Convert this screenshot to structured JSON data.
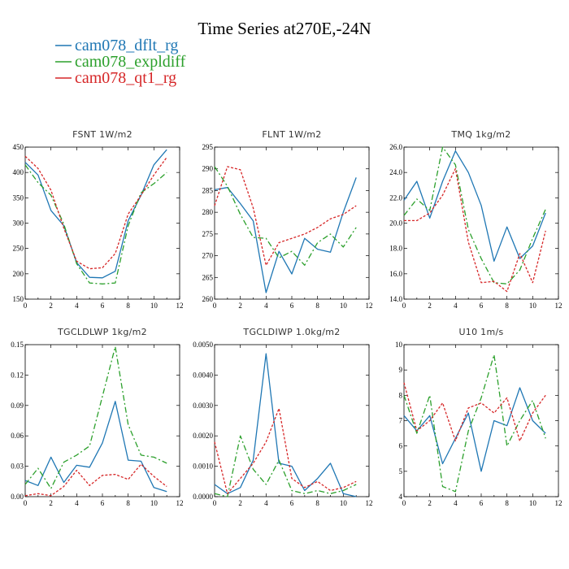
{
  "figure": {
    "title": "Time Series at270E,-24N"
  },
  "legend": [
    {
      "label": "cam078_dflt_rg",
      "color": "#1f77b4",
      "dash": "solid"
    },
    {
      "label": "cam078_expldiff",
      "color": "#2ca02c",
      "dash": "dashdot"
    },
    {
      "label": "cam078_qt1_rg",
      "color": "#d62728",
      "dash": "dotted"
    }
  ],
  "chart_data": [
    {
      "type": "line",
      "title": "FSNT   1W/m2",
      "x": [
        0,
        1,
        2,
        3,
        4,
        5,
        6,
        7,
        8,
        9,
        10,
        11
      ],
      "xlim": [
        0,
        12
      ],
      "xticks": [
        0,
        2,
        4,
        6,
        8,
        10,
        12
      ],
      "ylim": [
        150,
        450
      ],
      "yticks": [
        150,
        200,
        250,
        300,
        350,
        400,
        450
      ],
      "ytick_labels": [
        "150",
        "200",
        "250",
        "300",
        "350",
        "400",
        "450"
      ],
      "series": [
        {
          "name": "cam078_dflt_rg",
          "values": [
            420,
            395,
            325,
            295,
            222,
            193,
            192,
            205,
            305,
            355,
            415,
            445
          ]
        },
        {
          "name": "cam078_expldiff",
          "values": [
            415,
            380,
            355,
            298,
            220,
            182,
            180,
            182,
            295,
            360,
            378,
            400
          ]
        },
        {
          "name": "cam078_qt1_rg",
          "values": [
            432,
            408,
            365,
            290,
            225,
            210,
            212,
            240,
            318,
            355,
            395,
            430
          ]
        }
      ]
    },
    {
      "type": "line",
      "title": "FLNT   1W/m2",
      "x": [
        0,
        1,
        2,
        3,
        4,
        5,
        6,
        7,
        8,
        9,
        10,
        11
      ],
      "xlim": [
        0,
        12
      ],
      "xticks": [
        0,
        2,
        4,
        6,
        8,
        10,
        12
      ],
      "ylim": [
        260,
        295
      ],
      "yticks": [
        260,
        265,
        270,
        275,
        280,
        285,
        290,
        295
      ],
      "ytick_labels": [
        "260",
        "265",
        "270",
        "275",
        "280",
        "285",
        "290",
        "295"
      ],
      "series": [
        {
          "name": "cam078_dflt_rg",
          "values": [
            285.2,
            285.7,
            282,
            278,
            261.5,
            271,
            265.8,
            274,
            271.5,
            270.8,
            280,
            288
          ]
        },
        {
          "name": "cam078_expldiff",
          "values": [
            290.5,
            286,
            279.5,
            274.2,
            274,
            269.5,
            271,
            267.8,
            273,
            275,
            272,
            276.5
          ]
        },
        {
          "name": "cam078_qt1_rg",
          "values": [
            281.5,
            290.5,
            289.8,
            281,
            267.8,
            273,
            274,
            275,
            276.5,
            278.5,
            279.5,
            281.5
          ]
        }
      ]
    },
    {
      "type": "line",
      "title": "TMQ   1kg/m2",
      "x": [
        0,
        1,
        2,
        3,
        4,
        5,
        6,
        7,
        8,
        9,
        10,
        11
      ],
      "xlim": [
        0,
        12
      ],
      "xticks": [
        0,
        2,
        4,
        6,
        8,
        10,
        12
      ],
      "ylim": [
        14,
        26
      ],
      "yticks": [
        14,
        16,
        18,
        20,
        22,
        24,
        26
      ],
      "ytick_labels": [
        "14.0",
        "16.0",
        "18.0",
        "20.0",
        "22.0",
        "24.0",
        "26.0"
      ],
      "series": [
        {
          "name": "cam078_dflt_rg",
          "values": [
            21.8,
            23.3,
            20.4,
            23.3,
            25.7,
            24,
            21.4,
            17,
            19.7,
            17.2,
            18.2,
            20.8
          ]
        },
        {
          "name": "cam078_expldiff",
          "values": [
            20.6,
            21.9,
            21,
            26,
            24.6,
            19.5,
            17.2,
            15.3,
            15.2,
            16.3,
            18.8,
            21.1
          ]
        },
        {
          "name": "cam078_qt1_rg",
          "values": [
            20.2,
            20.2,
            20.8,
            22.2,
            24.3,
            18.5,
            15.3,
            15.4,
            14.6,
            17.6,
            15.3,
            19.4
          ]
        }
      ]
    },
    {
      "type": "line",
      "title": "TGCLDLWP   1kg/m2",
      "x": [
        0,
        1,
        2,
        3,
        4,
        5,
        6,
        7,
        8,
        9,
        10,
        11
      ],
      "xlim": [
        0,
        12
      ],
      "xticks": [
        0,
        2,
        4,
        6,
        8,
        10,
        12
      ],
      "ylim": [
        0,
        0.15
      ],
      "yticks": [
        0,
        0.03,
        0.06,
        0.09,
        0.12,
        0.15
      ],
      "ytick_labels": [
        "0.00",
        "0.03",
        "0.06",
        "0.09",
        "0.12",
        "0.15"
      ],
      "series": [
        {
          "name": "cam078_dflt_rg",
          "values": [
            0.016,
            0.011,
            0.039,
            0.014,
            0.031,
            0.029,
            0.053,
            0.094,
            0.036,
            0.035,
            0.009,
            0.005
          ]
        },
        {
          "name": "cam078_expldiff",
          "values": [
            0.012,
            0.028,
            0.008,
            0.034,
            0.041,
            0.05,
            0.099,
            0.148,
            0.071,
            0.041,
            0.039,
            0.033
          ]
        },
        {
          "name": "cam078_qt1_rg",
          "values": [
            0.001,
            0.003,
            0.001,
            0.01,
            0.026,
            0.011,
            0.021,
            0.022,
            0.017,
            0.032,
            0.02,
            0.01
          ]
        }
      ]
    },
    {
      "type": "line",
      "title": "TGCLDIWP   1.0kg/m2",
      "x": [
        0,
        1,
        2,
        3,
        4,
        5,
        6,
        7,
        8,
        9,
        10,
        11
      ],
      "xlim": [
        0,
        12
      ],
      "xticks": [
        0,
        2,
        4,
        6,
        8,
        10,
        12
      ],
      "ylim": [
        0,
        0.005
      ],
      "yticks": [
        0,
        0.001,
        0.002,
        0.003,
        0.004,
        0.005
      ],
      "ytick_labels": [
        "0.0000",
        "0.0010",
        "0.0020",
        "0.0030",
        "0.0040",
        "0.0050"
      ],
      "series": [
        {
          "name": "cam078_dflt_rg",
          "values": [
            0.0004,
            0.0001,
            0.0003,
            0.0012,
            0.0047,
            0.0011,
            0.001,
            0.0002,
            0.0006,
            0.0011,
            0.0001,
            0.0
          ]
        },
        {
          "name": "cam078_expldiff",
          "values": [
            0.0001,
            0.0,
            0.002,
            0.0009,
            0.0004,
            0.0012,
            0.0002,
            0.0001,
            0.0002,
            0.0001,
            0.0002,
            0.0004
          ]
        },
        {
          "name": "cam078_qt1_rg",
          "values": [
            0.0018,
            0.0001,
            0.0006,
            0.0011,
            0.0018,
            0.0029,
            0.0006,
            0.0003,
            0.0005,
            0.0002,
            0.0003,
            0.0005
          ]
        }
      ]
    },
    {
      "type": "line",
      "title": "U10   1m/s",
      "x": [
        0,
        1,
        2,
        3,
        4,
        5,
        6,
        7,
        8,
        9,
        10,
        11
      ],
      "xlim": [
        0,
        12
      ],
      "xticks": [
        0,
        2,
        4,
        6,
        8,
        10,
        12
      ],
      "ylim": [
        4,
        10
      ],
      "yticks": [
        4,
        5,
        6,
        7,
        8,
        9,
        10
      ],
      "ytick_labels": [
        "4",
        "5",
        "6",
        "7",
        "8",
        "9",
        "10"
      ],
      "series": [
        {
          "name": "cam078_dflt_rg",
          "values": [
            7.2,
            6.6,
            7.2,
            5.3,
            6.3,
            7.3,
            5.0,
            7.0,
            6.8,
            8.3,
            7.0,
            6.5
          ]
        },
        {
          "name": "cam078_expldiff",
          "values": [
            8.0,
            6.5,
            8.0,
            4.4,
            4.2,
            6.6,
            7.9,
            9.6,
            6.0,
            7.0,
            7.8,
            6.3
          ]
        },
        {
          "name": "cam078_qt1_rg",
          "values": [
            8.5,
            6.6,
            7.0,
            7.7,
            6.2,
            7.5,
            7.7,
            7.3,
            7.9,
            6.2,
            7.3,
            8.0
          ]
        }
      ]
    }
  ]
}
